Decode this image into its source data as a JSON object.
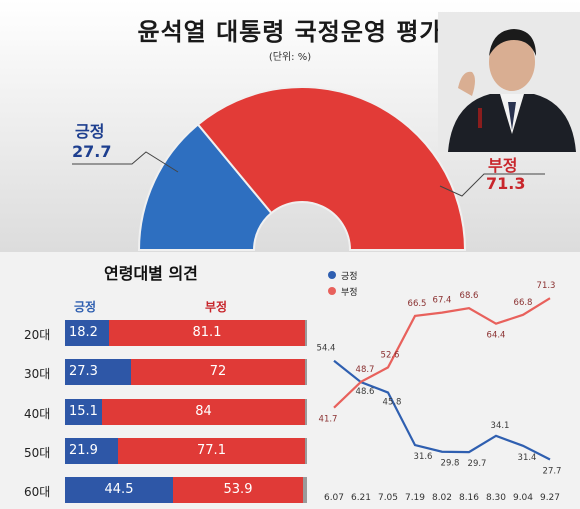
{
  "title": "윤석열 대통령 국정운영 평가",
  "unit": "(단위: %)",
  "overall": {
    "positive_label": "긍정",
    "positive_value": "27.7",
    "negative_label": "부정",
    "negative_value": "71.3",
    "colors": {
      "positive": "#2e6fc0",
      "negative": "#e23b37"
    }
  },
  "age_section": {
    "title": "연령대별 의견",
    "col_positive": "긍정",
    "col_negative": "부정",
    "rows": [
      {
        "age": "20대",
        "positive": "18.2",
        "negative": "81.1"
      },
      {
        "age": "30대",
        "positive": "27.3",
        "negative": "72"
      },
      {
        "age": "40대",
        "positive": "15.1",
        "negative": "84"
      },
      {
        "age": "50대",
        "positive": "21.9",
        "negative": "77.1"
      },
      {
        "age": "60대",
        "positive": "44.5",
        "negative": "53.9"
      }
    ]
  },
  "chart_data": [
    {
      "type": "pie",
      "labels": [
        "긍정",
        "부정"
      ],
      "values": [
        27.7,
        71.3
      ],
      "colors": [
        "#2e6fc0",
        "#e23b37"
      ]
    },
    {
      "type": "bar",
      "stacked": true,
      "orientation": "horizontal",
      "title": "연령대별 의견",
      "categories": [
        "20대",
        "30대",
        "40대",
        "50대",
        "60대"
      ],
      "series": [
        {
          "name": "긍정",
          "values": [
            18.2,
            27.3,
            15.1,
            21.9,
            44.5
          ]
        },
        {
          "name": "부정",
          "values": [
            81.1,
            72,
            84,
            77.1,
            53.9
          ]
        }
      ],
      "xlim": [
        0,
        100
      ]
    },
    {
      "type": "line",
      "x": [
        "6.07",
        "6.21",
        "7.05",
        "7.19",
        "8.02",
        "8.16",
        "8.30",
        "9.04",
        "9.27"
      ],
      "series": [
        {
          "name": "긍정",
          "color": "#2f5fb0",
          "values": [
            54.4,
            48.6,
            45.8,
            31.6,
            29.8,
            29.7,
            34.1,
            31.4,
            27.7
          ]
        },
        {
          "name": "부정",
          "color": "#e8615c",
          "values": [
            41.7,
            48.7,
            52.6,
            66.5,
            67.4,
            68.6,
            64.4,
            66.8,
            71.3
          ]
        }
      ],
      "legend": "top-left",
      "ylim": [
        20,
        80
      ]
    }
  ]
}
